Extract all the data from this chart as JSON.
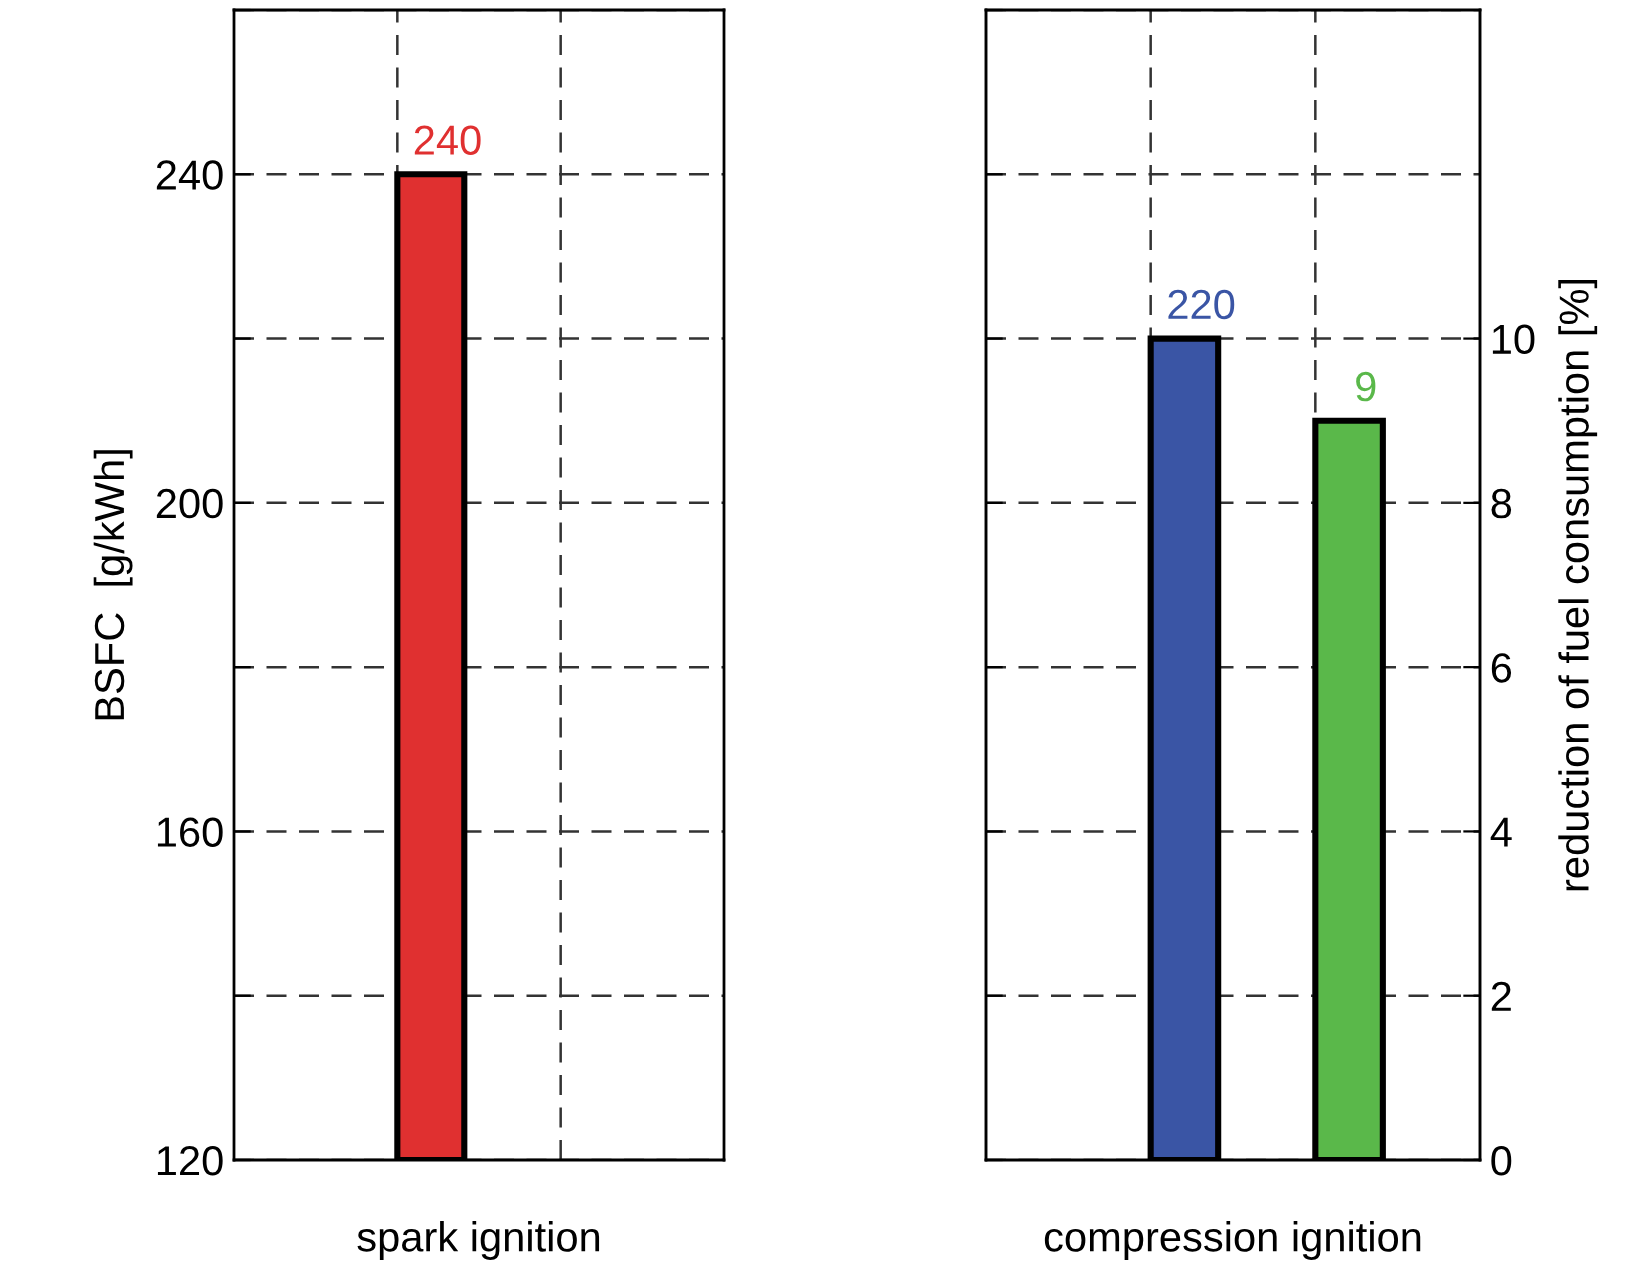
{
  "chart_data": [
    {
      "type": "bar",
      "xlabel": "spark ignition",
      "ylabel": "BSFC  [g/kWh]",
      "categories": [
        null
      ],
      "series": [
        {
          "color": "#e03030",
          "values": [
            240
          ]
        }
      ],
      "ylim": [
        120,
        260
      ],
      "yticks": [
        120,
        {
          "value": 140,
          "label": null
        },
        160,
        {
          "value": 180,
          "label": null
        },
        200,
        {
          "value": 220,
          "label": null
        },
        240,
        {
          "value": 260,
          "label": null
        }
      ],
      "grid": true,
      "data_labels": true,
      "tick_labels": "y"
    },
    {
      "type": "bar",
      "xlabel": "compression ignition",
      "y2label": "reduction of fuel consumption [%]",
      "categories": [
        null,
        null
      ],
      "series": [
        {
          "color": "#3a55a5",
          "values": [
            220,
            null
          ]
        },
        {
          "color": "#5ab84a",
          "values": [
            null,
            9
          ],
          "axis": "y2"
        }
      ],
      "y2lim": [
        0,
        14
      ],
      "y2ticks": [
        0,
        2,
        4,
        6,
        8,
        10
      ],
      "grid": true,
      "data_labels": true,
      "tick_labels": "y2"
    }
  ]
}
